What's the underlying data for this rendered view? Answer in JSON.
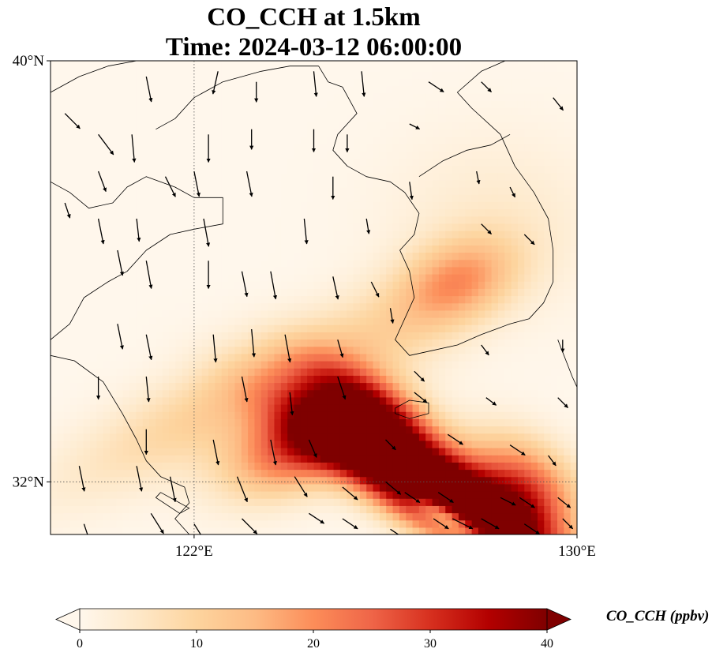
{
  "map": {
    "title_line1": "CO_CCH at 1.5km",
    "title_line2": "Time: 2024-03-12 06:00:00",
    "lon_range": [
      119,
      130
    ],
    "lat_range": [
      31,
      40
    ],
    "lat_ticks": [
      {
        "value": 40,
        "label": "40°N"
      },
      {
        "value": 32,
        "label": "32°N"
      }
    ],
    "lon_ticks": [
      {
        "value": 122,
        "label": "122°E"
      },
      {
        "value": 130,
        "label": "130°E"
      }
    ],
    "gridlines": {
      "lon": [
        122
      ],
      "lat": [
        32
      ],
      "style": "dotted"
    },
    "colorbar": {
      "label": "CO_CCH (ppbv)",
      "min": 0,
      "max": 40,
      "ticks": [
        {
          "value": 0,
          "label": "0"
        },
        {
          "value": 10,
          "label": "10"
        },
        {
          "value": 20,
          "label": "20"
        },
        {
          "value": 30,
          "label": "30"
        },
        {
          "value": 40,
          "label": "40"
        }
      ],
      "extend": "both",
      "colormap": "OrRd",
      "colors": [
        "#fff7ec",
        "#fee8c8",
        "#fdd49e",
        "#fdbb84",
        "#fc8d59",
        "#ef6548",
        "#d7301f",
        "#b30000",
        "#7f0000"
      ]
    },
    "field_features": [
      {
        "lon": 127.7,
        "lat": 31.6,
        "peak": 42,
        "sx": 1.6,
        "sy": 0.45,
        "angle": -28
      },
      {
        "lon": 126.0,
        "lat": 32.2,
        "peak": 34,
        "sx": 1.7,
        "sy": 0.45,
        "angle": -30
      },
      {
        "lon": 125.8,
        "lat": 33.3,
        "peak": 30,
        "sx": 1.2,
        "sy": 0.45,
        "angle": -30
      },
      {
        "lon": 124.3,
        "lat": 32.7,
        "peak": 26,
        "sx": 1.1,
        "sy": 0.55,
        "angle": 20
      },
      {
        "lon": 128.9,
        "lat": 31.9,
        "peak": 26,
        "sx": 0.9,
        "sy": 0.6,
        "angle": -30
      },
      {
        "lon": 122.3,
        "lat": 33.4,
        "peak": 10,
        "sx": 2.4,
        "sy": 0.6,
        "angle": 25
      },
      {
        "lon": 127.5,
        "lat": 35.8,
        "peak": 16,
        "sx": 0.9,
        "sy": 0.55,
        "angle": 20
      },
      {
        "lon": 125.2,
        "lat": 34.2,
        "peak": 8,
        "sx": 1.8,
        "sy": 0.7,
        "angle": 30
      },
      {
        "lon": 128.3,
        "lat": 37.0,
        "peak": 4,
        "sx": 1.6,
        "sy": 1.2,
        "angle": 0
      },
      {
        "lon": 127.2,
        "lat": 31.4,
        "peak": -30,
        "sx": 0.6,
        "sy": 0.18,
        "angle": -28
      }
    ],
    "wind_vectors": [
      [
        121.0,
        39.7,
        0.2,
        -1.0
      ],
      [
        122.5,
        39.8,
        -0.2,
        -0.9
      ],
      [
        123.3,
        39.6,
        0.0,
        -0.8
      ],
      [
        124.5,
        39.8,
        0.1,
        -1.0
      ],
      [
        125.5,
        39.8,
        0.1,
        -1.0
      ],
      [
        126.9,
        39.6,
        0.6,
        -0.4
      ],
      [
        128.0,
        39.6,
        0.4,
        -0.4
      ],
      [
        129.5,
        39.3,
        0.4,
        -0.5
      ],
      [
        119.3,
        39.0,
        0.6,
        -0.6
      ],
      [
        120.0,
        38.6,
        0.6,
        -0.8
      ],
      [
        120.7,
        38.6,
        0.1,
        -1.1
      ],
      [
        122.3,
        38.6,
        0.0,
        -1.1
      ],
      [
        123.2,
        38.7,
        0.0,
        -0.8
      ],
      [
        124.5,
        38.7,
        0.0,
        -0.9
      ],
      [
        125.2,
        38.6,
        0.0,
        -0.7
      ],
      [
        126.5,
        38.8,
        0.4,
        -0.2
      ],
      [
        120.0,
        37.9,
        0.3,
        -0.8
      ],
      [
        121.4,
        37.8,
        0.4,
        -0.8
      ],
      [
        122.0,
        37.9,
        0.2,
        -1.0
      ],
      [
        123.1,
        37.9,
        0.2,
        -1.0
      ],
      [
        124.9,
        37.8,
        0.0,
        -0.9
      ],
      [
        126.5,
        37.7,
        0.1,
        -0.7
      ],
      [
        127.9,
        37.9,
        0.1,
        -0.5
      ],
      [
        128.6,
        37.6,
        0.2,
        -0.4
      ],
      [
        119.3,
        37.3,
        0.2,
        -0.6
      ],
      [
        120.0,
        37.0,
        0.2,
        -1.0
      ],
      [
        120.8,
        37.0,
        0.1,
        -0.9
      ],
      [
        122.2,
        37.0,
        0.2,
        -1.1
      ],
      [
        124.3,
        37.0,
        0.1,
        -1.0
      ],
      [
        125.6,
        37.0,
        0.1,
        -0.6
      ],
      [
        128.0,
        36.9,
        0.4,
        -0.4
      ],
      [
        128.9,
        36.7,
        0.4,
        -0.4
      ],
      [
        120.4,
        36.4,
        0.2,
        -1.0
      ],
      [
        121.0,
        36.2,
        0.2,
        -1.1
      ],
      [
        122.3,
        36.2,
        0.0,
        -1.1
      ],
      [
        123.0,
        36.0,
        0.2,
        -1.0
      ],
      [
        123.6,
        36.0,
        0.2,
        -1.1
      ],
      [
        124.9,
        35.9,
        0.2,
        -0.9
      ],
      [
        125.7,
        35.8,
        0.3,
        -0.6
      ],
      [
        126.1,
        35.3,
        0.1,
        -0.6
      ],
      [
        120.4,
        35.0,
        0.2,
        -1.0
      ],
      [
        121.0,
        34.8,
        0.2,
        -1.0
      ],
      [
        122.4,
        34.8,
        0.1,
        -1.1
      ],
      [
        123.2,
        34.9,
        0.1,
        -1.1
      ],
      [
        123.9,
        34.8,
        0.2,
        -1.1
      ],
      [
        125.0,
        34.7,
        0.2,
        -0.7
      ],
      [
        126.6,
        34.1,
        0.4,
        -0.4
      ],
      [
        128.0,
        34.6,
        0.3,
        -0.4
      ],
      [
        129.7,
        34.7,
        0.0,
        -0.5
      ],
      [
        120.0,
        34.0,
        0.0,
        -0.9
      ],
      [
        121.0,
        34.0,
        0.1,
        -1.0
      ],
      [
        123.0,
        34.0,
        0.2,
        -1.0
      ],
      [
        124.0,
        33.7,
        0.1,
        -0.9
      ],
      [
        125.0,
        34.0,
        0.3,
        -0.9
      ],
      [
        126.6,
        33.7,
        0.5,
        -0.4
      ],
      [
        128.1,
        33.6,
        0.4,
        -0.3
      ],
      [
        129.6,
        33.6,
        0.4,
        -0.4
      ],
      [
        121.0,
        33.0,
        0.0,
        -1.0
      ],
      [
        122.4,
        32.8,
        0.2,
        -1.0
      ],
      [
        123.6,
        32.8,
        0.2,
        -1.0
      ],
      [
        124.4,
        32.8,
        0.3,
        -0.7
      ],
      [
        126.0,
        32.8,
        0.4,
        -0.4
      ],
      [
        127.3,
        32.9,
        0.6,
        -0.4
      ],
      [
        128.6,
        32.7,
        0.6,
        -0.4
      ],
      [
        129.4,
        32.5,
        0.3,
        -0.4
      ],
      [
        119.6,
        32.3,
        0.2,
        -1.0
      ],
      [
        120.8,
        32.3,
        0.2,
        -1.0
      ],
      [
        121.5,
        32.1,
        0.2,
        -1.0
      ],
      [
        122.9,
        32.1,
        0.4,
        -1.0
      ],
      [
        124.1,
        32.1,
        0.5,
        -0.8
      ],
      [
        125.1,
        31.9,
        0.6,
        -0.5
      ],
      [
        126.0,
        32.0,
        0.6,
        -0.5
      ],
      [
        126.4,
        31.8,
        0.6,
        -0.4
      ],
      [
        127.1,
        31.8,
        0.6,
        -0.4
      ],
      [
        127.4,
        31.3,
        0.8,
        -0.4
      ],
      [
        128.4,
        31.7,
        0.6,
        -0.3
      ],
      [
        128.8,
        31.7,
        0.6,
        -0.4
      ],
      [
        129.6,
        31.7,
        0.5,
        -0.4
      ],
      [
        119.7,
        31.2,
        0.2,
        -0.6
      ],
      [
        121.1,
        31.4,
        0.5,
        -0.8
      ],
      [
        122.0,
        31.2,
        0.5,
        -0.8
      ],
      [
        123.0,
        31.3,
        0.6,
        -0.6
      ],
      [
        124.4,
        31.4,
        0.6,
        -0.4
      ],
      [
        125.1,
        31.3,
        0.6,
        -0.4
      ],
      [
        126.1,
        31.1,
        0.6,
        -0.4
      ],
      [
        127.0,
        31.3,
        0.6,
        -0.4
      ],
      [
        128.0,
        31.3,
        0.7,
        -0.4
      ],
      [
        128.9,
        31.2,
        0.6,
        -0.4
      ],
      [
        129.7,
        31.3,
        0.4,
        -0.4
      ]
    ],
    "coastlines": {
      "china_north": [
        [
          119.0,
          37.7
        ],
        [
          119.4,
          37.5
        ],
        [
          119.8,
          37.2
        ],
        [
          120.3,
          37.3
        ],
        [
          120.6,
          37.6
        ],
        [
          121.0,
          37.8
        ],
        [
          121.6,
          37.6
        ],
        [
          122.0,
          37.4
        ],
        [
          122.6,
          37.4
        ],
        [
          122.6,
          36.9
        ],
        [
          122.0,
          36.8
        ],
        [
          121.5,
          36.7
        ],
        [
          121.0,
          36.4
        ],
        [
          120.6,
          36.0
        ],
        [
          120.2,
          35.8
        ],
        [
          119.7,
          35.5
        ],
        [
          119.4,
          35.0
        ],
        [
          119.0,
          34.7
        ]
      ],
      "china_south": [
        [
          119.0,
          34.4
        ],
        [
          119.5,
          34.3
        ],
        [
          120.1,
          33.9
        ],
        [
          120.5,
          33.3
        ],
        [
          120.8,
          32.8
        ],
        [
          121.0,
          32.4
        ],
        [
          121.3,
          32.1
        ],
        [
          121.8,
          31.9
        ],
        [
          121.9,
          31.6
        ],
        [
          121.6,
          31.3
        ],
        [
          121.9,
          31.0
        ],
        [
          121.7,
          30.9
        ],
        [
          121.3,
          30.9
        ],
        [
          121.0,
          30.7
        ]
      ],
      "liaodong": [
        [
          121.2,
          38.7
        ],
        [
          121.6,
          38.9
        ],
        [
          122.0,
          39.3
        ],
        [
          122.6,
          39.6
        ],
        [
          123.4,
          39.8
        ],
        [
          124.0,
          39.9
        ],
        [
          124.6,
          39.9
        ]
      ],
      "bohai_north": [
        [
          119.0,
          39.4
        ],
        [
          119.6,
          39.7
        ],
        [
          120.2,
          39.9
        ],
        [
          120.8,
          40.0
        ]
      ],
      "korea": [
        [
          124.6,
          39.9
        ],
        [
          124.8,
          39.6
        ],
        [
          125.1,
          39.5
        ],
        [
          125.4,
          39.0
        ],
        [
          125.2,
          38.8
        ],
        [
          125.0,
          38.6
        ],
        [
          124.9,
          38.3
        ],
        [
          125.2,
          38.0
        ],
        [
          125.6,
          37.8
        ],
        [
          126.1,
          37.7
        ],
        [
          126.4,
          37.5
        ],
        [
          126.7,
          37.1
        ],
        [
          126.6,
          36.7
        ],
        [
          126.3,
          36.4
        ],
        [
          126.5,
          36.0
        ],
        [
          126.6,
          35.5
        ],
        [
          126.4,
          35.1
        ],
        [
          126.2,
          34.7
        ],
        [
          126.5,
          34.4
        ],
        [
          127.0,
          34.5
        ],
        [
          127.5,
          34.6
        ],
        [
          128.0,
          34.8
        ],
        [
          128.6,
          35.0
        ],
        [
          129.0,
          35.1
        ],
        [
          129.3,
          35.4
        ],
        [
          129.5,
          35.8
        ],
        [
          129.5,
          36.4
        ],
        [
          129.4,
          37.0
        ],
        [
          129.1,
          37.5
        ],
        [
          128.7,
          38.0
        ],
        [
          128.4,
          38.6
        ],
        [
          127.8,
          39.1
        ],
        [
          127.5,
          39.4
        ],
        [
          128.0,
          39.8
        ],
        [
          128.5,
          40.0
        ]
      ],
      "dmz": [
        [
          126.7,
          37.8
        ],
        [
          127.2,
          38.1
        ],
        [
          127.7,
          38.3
        ],
        [
          128.2,
          38.4
        ],
        [
          128.6,
          38.6
        ]
      ],
      "jeju": [
        [
          126.2,
          33.4
        ],
        [
          126.5,
          33.55
        ],
        [
          126.9,
          33.5
        ],
        [
          126.9,
          33.3
        ],
        [
          126.5,
          33.2
        ],
        [
          126.2,
          33.3
        ],
        [
          126.2,
          33.4
        ]
      ],
      "japan": [
        [
          129.6,
          34.7
        ],
        [
          129.9,
          34.0
        ],
        [
          130.0,
          33.8
        ]
      ],
      "changxing": [
        [
          121.3,
          31.8
        ],
        [
          121.9,
          31.5
        ],
        [
          121.7,
          31.4
        ],
        [
          121.2,
          31.7
        ],
        [
          121.3,
          31.8
        ]
      ]
    }
  }
}
